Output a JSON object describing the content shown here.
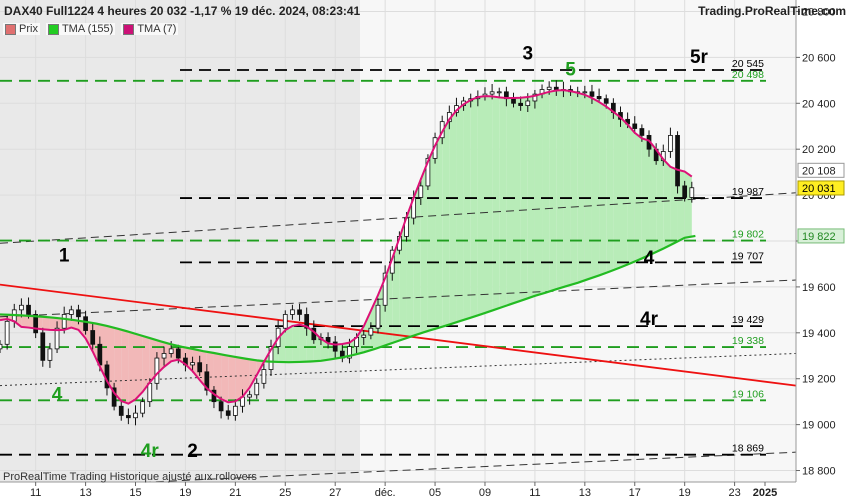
{
  "header": {
    "title": "DAX40 Full1224 4 heures 20 032 -1,17 % 19 déc. 2024, 08:23:41",
    "brand": "Trading.ProRealTime.com"
  },
  "legend": [
    {
      "label": "Prix",
      "color": "#e07070"
    },
    {
      "label": "TMA (155)",
      "color": "#22cc22"
    },
    {
      "label": "TMA (7)",
      "color": "#cc1177"
    }
  ],
  "footer": "ProRealTime Trading Historique ajusté aux rollovers",
  "colors": {
    "bg_left": "#e9e9e9",
    "bg_right": "#f7f7f7",
    "price": "#111111",
    "tma155": "#22bb22",
    "tma7": "#dd1177",
    "fill_up": "#b8ecb8",
    "fill_down": "#f2b8b8",
    "trend": "#ee1111"
  },
  "chart_data": {
    "type": "line",
    "ylim": [
      18750,
      20850
    ],
    "xlim": [
      0,
      106
    ],
    "yticks": [
      18800,
      19000,
      19200,
      19400,
      19600,
      19800,
      20000,
      20200,
      20400,
      20600,
      20800
    ],
    "ytick_labels": [
      "18 800",
      "19 000",
      "19 200",
      "19 400",
      "19 600",
      "",
      "20 000",
      "20 200",
      "20 400",
      "20 600",
      "20 800"
    ],
    "xticks": [
      {
        "x": 5,
        "label": "11"
      },
      {
        "x": 12,
        "label": "13"
      },
      {
        "x": 19,
        "label": "15"
      },
      {
        "x": 26,
        "label": "19"
      },
      {
        "x": 33,
        "label": "21"
      },
      {
        "x": 40,
        "label": "25"
      },
      {
        "x": 47,
        "label": "27"
      },
      {
        "x": 54,
        "label": "déc."
      },
      {
        "x": 61,
        "label": "05"
      },
      {
        "x": 68,
        "label": "09"
      },
      {
        "x": 75,
        "label": "11"
      },
      {
        "x": 82,
        "label": "13"
      },
      {
        "x": 89,
        "label": "17"
      },
      {
        "x": 96,
        "label": "19"
      },
      {
        "x": 103,
        "label": "23"
      }
    ],
    "xtick_extra": {
      "x": 112,
      "label": "2025"
    },
    "price_close": [
      19350,
      19450,
      19500,
      19520,
      19480,
      19400,
      19280,
      19330,
      19420,
      19480,
      19500,
      19470,
      19410,
      19350,
      19260,
      19160,
      19080,
      19040,
      19030,
      19050,
      19100,
      19180,
      19290,
      19310,
      19330,
      19290,
      19260,
      19270,
      19230,
      19150,
      19100,
      19060,
      19040,
      19080,
      19120,
      19130,
      19180,
      19240,
      19340,
      19420,
      19480,
      19500,
      19480,
      19420,
      19370,
      19380,
      19360,
      19320,
      19290,
      19340,
      19380,
      19390,
      19420,
      19520,
      19660,
      19760,
      19820,
      19900,
      19990,
      20040,
      20160,
      20250,
      20320,
      20360,
      20390,
      20410,
      20420,
      20430,
      20440,
      20450,
      20450,
      20420,
      20400,
      20390,
      20410,
      20440,
      20460,
      20470,
      20460,
      20460,
      20450,
      20450,
      20450,
      20430,
      20420,
      20400,
      20360,
      20330,
      20310,
      20290,
      20260,
      20200,
      20150,
      20190,
      20260,
      20040,
      19990,
      20032
    ],
    "tma155": [
      19480,
      19478,
      19476,
      19473,
      19470,
      19466,
      19461,
      19455,
      19448,
      19440,
      19430,
      19418,
      19405,
      19391,
      19377,
      19363,
      19350,
      19339,
      19330,
      19320,
      19312,
      19303,
      19295,
      19287,
      19280,
      19275,
      19273,
      19272,
      19273,
      19275,
      19278,
      19285,
      19293,
      19303,
      19315,
      19329,
      19345,
      19361,
      19377,
      19393,
      19408,
      19422,
      19436,
      19451,
      19466,
      19481,
      19497,
      19513,
      19529,
      19545,
      19561,
      19575,
      19590,
      19604,
      19618,
      19634,
      19650,
      19667,
      19685,
      19704,
      19724,
      19745,
      19767,
      19790,
      19814,
      19822
    ],
    "tma155_x0": 0,
    "tma155_step": 1.5,
    "hlines": [
      {
        "value": 20545,
        "label": "20 545",
        "color": "#000000",
        "group": "black"
      },
      {
        "value": 20498,
        "label": "20 498",
        "color": "#1f9e1f",
        "group": "green"
      },
      {
        "value": 19987,
        "label": "19 987",
        "color": "#000000",
        "group": "black"
      },
      {
        "value": 19802,
        "label": "19 802",
        "color": "#1f9e1f",
        "group": "green"
      },
      {
        "value": 19707,
        "label": "19 707",
        "color": "#000000",
        "group": "black"
      },
      {
        "value": 19429,
        "label": "19 429",
        "color": "#000000",
        "group": "black"
      },
      {
        "value": 19338,
        "label": "19 338",
        "color": "#1f9e1f",
        "group": "green"
      },
      {
        "value": 19106,
        "label": "19 106",
        "color": "#1f9e1f",
        "group": "green"
      },
      {
        "value": 18869,
        "label": "18 869",
        "color": "#000000",
        "group": "black"
      }
    ],
    "tags": [
      {
        "value": 20108,
        "label": "20 108",
        "bg": "#ffffff",
        "border": "#999999",
        "color": "#222222"
      },
      {
        "value": 20031,
        "label": "20 031",
        "bg": "#ffee22",
        "border": "#aa9900",
        "color": "#000000"
      },
      {
        "value": 19822,
        "label": "19 822",
        "bg": "#d8f0d8",
        "border": "#77bb77",
        "color": "#228822"
      }
    ],
    "trend_line": {
      "x1": 0,
      "y1": 19610,
      "x2": 106,
      "y2": 19170
    },
    "channels": [
      {
        "x1": 0,
        "y1": 19790,
        "x2": 106,
        "y2": 20010
      },
      {
        "x1": 0,
        "y1": 19470,
        "x2": 106,
        "y2": 19630
      },
      {
        "x1": 0,
        "y1": 19170,
        "x2": 106,
        "y2": 19310
      },
      {
        "x1": 0,
        "y1": 18720,
        "x2": 106,
        "y2": 18880
      }
    ],
    "annotations": [
      {
        "text": "3",
        "x": 74,
        "y": 20590,
        "color": "#000000"
      },
      {
        "text": "5",
        "x": 80,
        "y": 20520,
        "color": "#1f9e1f"
      },
      {
        "text": "5r",
        "x": 98,
        "y": 20575,
        "color": "#000000"
      },
      {
        "text": "1",
        "x": 9,
        "y": 19710,
        "color": "#000000"
      },
      {
        "text": "4",
        "x": 91,
        "y": 19700,
        "color": "#000000"
      },
      {
        "text": "4r",
        "x": 91,
        "y": 19435,
        "color": "#000000"
      },
      {
        "text": "4",
        "x": 8,
        "y": 19105,
        "color": "#1f9e1f"
      },
      {
        "text": "4r",
        "x": 21,
        "y": 18860,
        "color": "#1f9e1f"
      },
      {
        "text": "2",
        "x": 27,
        "y": 18860,
        "color": "#000000"
      }
    ]
  }
}
